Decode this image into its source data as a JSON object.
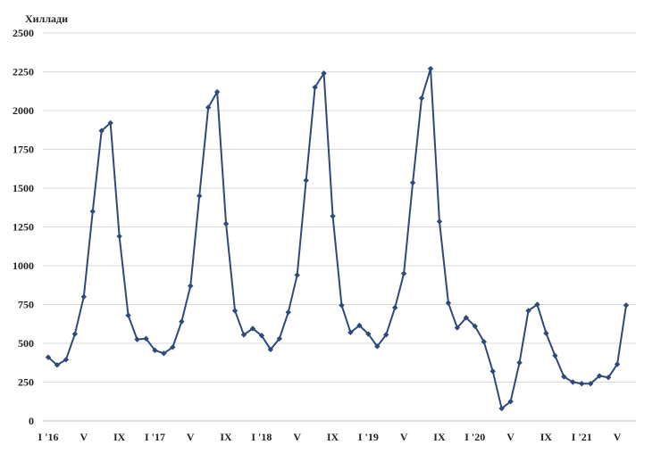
{
  "chart_data": {
    "type": "line",
    "ylabel": "Хиллади",
    "ylim": [
      0,
      2500
    ],
    "yticks": [
      "0",
      "250",
      "500",
      "750",
      "1000",
      "1250",
      "1500",
      "1750",
      "2000",
      "2250",
      "2500"
    ],
    "x_tick_labels": [
      {
        "index": 0,
        "label": "I '16"
      },
      {
        "index": 4,
        "label": "V"
      },
      {
        "index": 8,
        "label": "IX"
      },
      {
        "index": 12,
        "label": "I '17"
      },
      {
        "index": 16,
        "label": "V"
      },
      {
        "index": 20,
        "label": "IX"
      },
      {
        "index": 24,
        "label": "I '18"
      },
      {
        "index": 28,
        "label": "V"
      },
      {
        "index": 32,
        "label": "IX"
      },
      {
        "index": 36,
        "label": "I '19"
      },
      {
        "index": 40,
        "label": "V"
      },
      {
        "index": 44,
        "label": "IX"
      },
      {
        "index": 48,
        "label": "I '20"
      },
      {
        "index": 52,
        "label": "V"
      },
      {
        "index": 56,
        "label": "IX"
      },
      {
        "index": 60,
        "label": "I '21"
      },
      {
        "index": 64,
        "label": "V"
      }
    ],
    "grid": true,
    "series_color": "#2e4a7d",
    "series": [
      {
        "values": [
          410,
          360,
          395,
          560,
          800,
          1350,
          1870,
          1920,
          1190,
          680,
          525,
          530,
          455,
          435,
          475,
          640,
          870,
          1450,
          2020,
          2120,
          1270,
          710,
          555,
          595,
          550,
          460,
          530,
          700,
          940,
          1550,
          2150,
          2240,
          1320,
          745,
          570,
          615,
          560,
          480,
          555,
          730,
          950,
          1535,
          2080,
          2270,
          1285,
          760,
          600,
          665,
          610,
          510,
          320,
          80,
          125,
          375,
          710,
          750,
          565,
          420,
          285,
          250,
          240,
          240,
          290,
          280,
          365,
          745
        ]
      }
    ]
  }
}
